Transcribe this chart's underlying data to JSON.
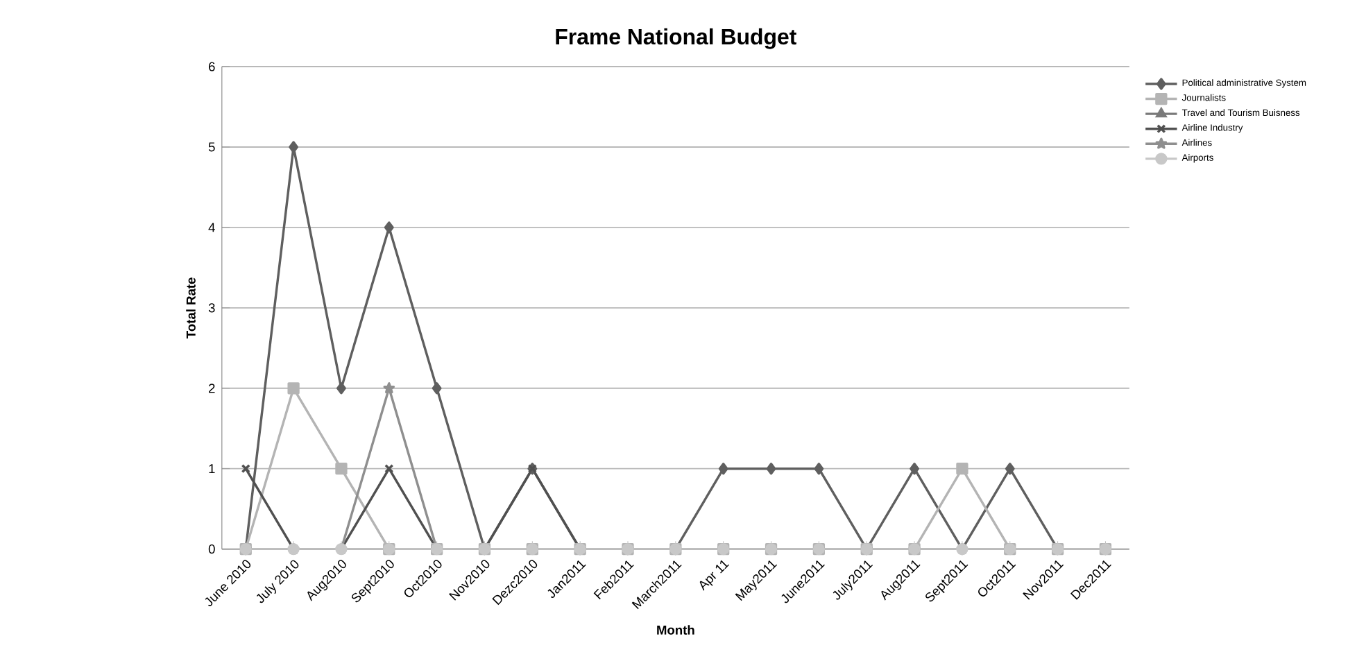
{
  "chart_data": {
    "type": "line",
    "title": "Frame National Budget",
    "xlabel": "Month",
    "ylabel": "Total Rate",
    "categories": [
      "June 2010",
      "July 2010",
      "Aug2010",
      "Sept2010",
      "Oct2010",
      "Nov2010",
      "Dezc2010",
      "Jan2011",
      "Feb2011",
      "March2011",
      "Apr 11",
      "May2011",
      "June2011",
      "July2011",
      "Aug2011",
      "Sept2011",
      "Oct2011",
      "Nov2011",
      "Dec2011"
    ],
    "series": [
      {
        "name": "Political administrative System",
        "color": "#5f5f5f",
        "marker": "diamond",
        "values": [
          0,
          5,
          2,
          4,
          2,
          0,
          1,
          0,
          0,
          0,
          1,
          1,
          1,
          0,
          1,
          0,
          1,
          0,
          0
        ]
      },
      {
        "name": "Journalists",
        "color": "#b4b4b4",
        "marker": "square",
        "values": [
          0,
          2,
          1,
          0,
          0,
          0,
          0,
          0,
          0,
          0,
          0,
          0,
          0,
          0,
          0,
          1,
          0,
          0,
          0
        ]
      },
      {
        "name": "Travel and Tourism Buisness",
        "color": "#7a7a7a",
        "marker": "triangle",
        "values": [
          null,
          null,
          null,
          null,
          null,
          null,
          null,
          null,
          null,
          null,
          null,
          null,
          null,
          null,
          null,
          null,
          null,
          null,
          null
        ]
      },
      {
        "name": "Airline Industry",
        "color": "#505050",
        "marker": "cross",
        "values": [
          1,
          0,
          0,
          1,
          0,
          0,
          1,
          0,
          0,
          0,
          0,
          0,
          0,
          0,
          0,
          0,
          0,
          0,
          0
        ]
      },
      {
        "name": "Airlines",
        "color": "#8f8f8f",
        "marker": "star",
        "values": [
          0,
          0,
          0,
          2,
          0,
          0,
          0,
          0,
          0,
          0,
          0,
          0,
          0,
          0,
          0,
          0,
          0,
          0,
          0
        ]
      },
      {
        "name": "Airports",
        "color": "#c8c8c8",
        "marker": "circle",
        "values": [
          0,
          0,
          0,
          0,
          0,
          0,
          0,
          0,
          0,
          0,
          0,
          0,
          0,
          0,
          0,
          0,
          0,
          0,
          0
        ]
      }
    ],
    "ylim": [
      0,
      6
    ],
    "yticks": [
      0,
      1,
      2,
      3,
      4,
      5,
      6
    ],
    "grid": "y",
    "legend": "right",
    "line_style": "solid"
  }
}
